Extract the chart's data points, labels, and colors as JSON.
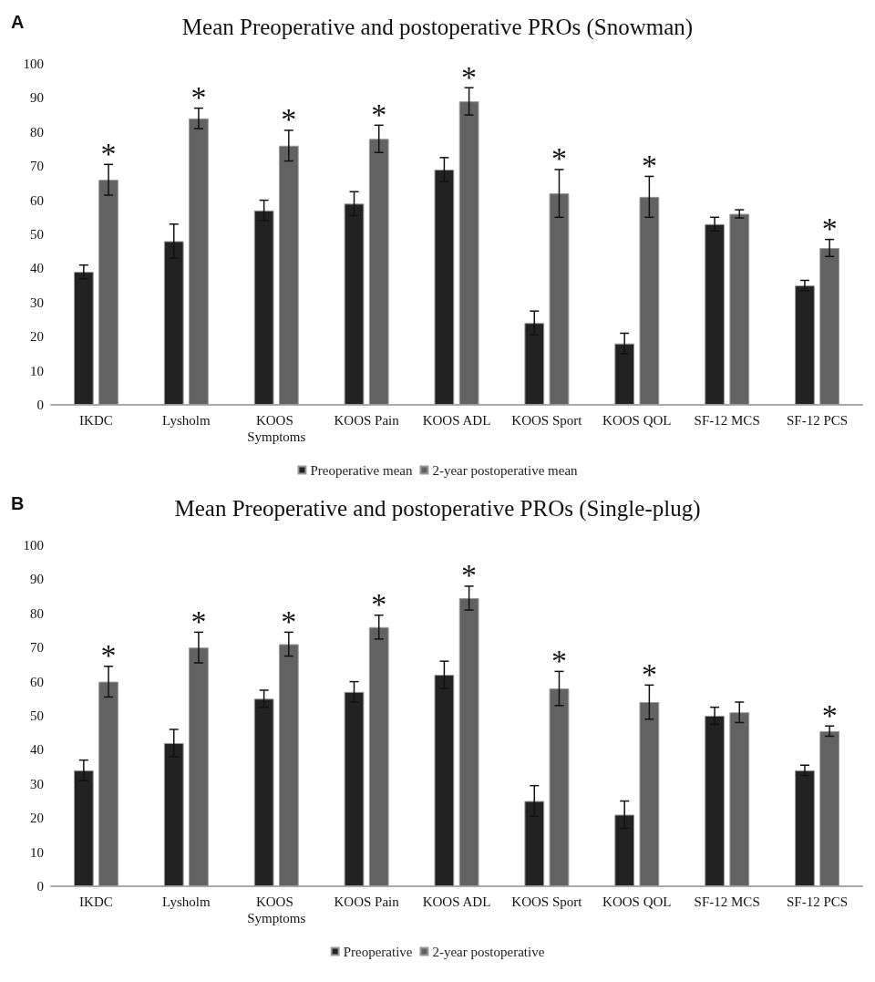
{
  "chart_data": [
    {
      "type": "bar",
      "title": "Mean Preoperative and postoperative PROs (Snowman)",
      "categories": [
        "IKDC",
        "Lysholm",
        "KOOS Symptoms",
        "KOOS Pain",
        "KOOS ADL",
        "KOOS Sport",
        "KOOS QOL",
        "SF-12 MCS",
        "SF-12 PCS"
      ],
      "series": [
        {
          "name": "Preoperative mean",
          "color": "#222222",
          "values": [
            39,
            48,
            57,
            59,
            69,
            24,
            18,
            53,
            35
          ],
          "errors": [
            2,
            5,
            3,
            3.5,
            3.5,
            3.5,
            3,
            2,
            1.5
          ]
        },
        {
          "name": "2-year postoperative mean",
          "color": "#626262",
          "values": [
            66,
            84,
            76,
            78,
            89,
            62,
            61,
            56,
            46
          ],
          "errors": [
            4.5,
            3,
            4.5,
            4,
            4,
            7,
            6,
            1.2,
            2.5
          ],
          "value_labels": [
            "*",
            "*",
            "*",
            "*",
            "*",
            "*",
            "*",
            null,
            "*"
          ]
        }
      ],
      "ylim": [
        0,
        100
      ],
      "yticks": [
        0,
        10,
        20,
        30,
        40,
        50,
        60,
        70,
        80,
        90,
        100
      ],
      "grid": false,
      "legend": "bottom",
      "annotations": [
        "A"
      ]
    },
    {
      "type": "bar",
      "title": "Mean Preoperative and postoperative PROs (Single-plug)",
      "categories": [
        "IKDC",
        "Lysholm",
        "KOOS Symptoms",
        "KOOS Pain",
        "KOOS ADL",
        "KOOS Sport",
        "KOOS QOL",
        "SF-12 MCS",
        "SF-12 PCS"
      ],
      "series": [
        {
          "name": "Preoperative",
          "color": "#222222",
          "values": [
            34,
            42,
            55,
            57,
            62,
            25,
            21,
            50,
            34
          ],
          "errors": [
            3,
            4,
            2.5,
            3,
            4,
            4.5,
            4,
            2.5,
            1.5
          ]
        },
        {
          "name": "2-year postoperative",
          "color": "#626262",
          "values": [
            60,
            70,
            71,
            76,
            84.5,
            58,
            54,
            51,
            45.5
          ],
          "errors": [
            4.5,
            4.5,
            3.5,
            3.5,
            3.5,
            5,
            5,
            3,
            1.5
          ],
          "value_labels": [
            "*",
            "*",
            "*",
            "*",
            "*",
            "*",
            "*",
            null,
            "*"
          ]
        }
      ],
      "ylim": [
        0,
        100
      ],
      "yticks": [
        0,
        10,
        20,
        30,
        40,
        50,
        60,
        70,
        80,
        90,
        100
      ],
      "grid": false,
      "legend": "bottom",
      "annotations": [
        "B"
      ]
    }
  ]
}
